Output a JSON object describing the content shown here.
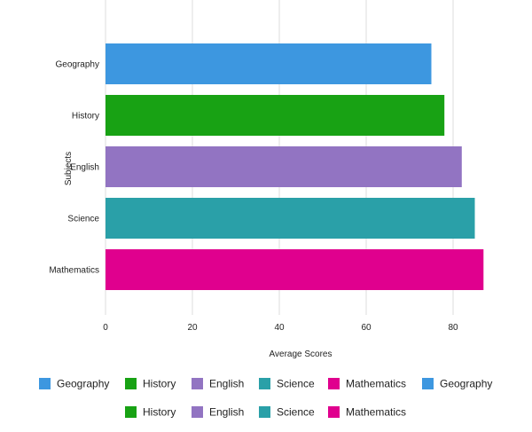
{
  "chart_data": {
    "type": "bar",
    "orientation": "horizontal",
    "categories": [
      "Geography",
      "History",
      "English",
      "Science",
      "Mathematics"
    ],
    "values": [
      75,
      78,
      82,
      85,
      87
    ],
    "colors": [
      "#3d97e0",
      "#18a214",
      "#9274c2",
      "#2aa0a8",
      "#e0008e"
    ],
    "xlabel": "Average Scores",
    "ylabel": "Subjects",
    "xlim": [
      0,
      90
    ],
    "xticks": [
      0,
      20,
      40,
      60,
      80
    ],
    "grid": true,
    "legend": {
      "position": "bottom",
      "entries": [
        "Geography",
        "History",
        "English",
        "Science",
        "Mathematics",
        "Geography",
        "History",
        "English",
        "Science",
        "Mathematics"
      ]
    }
  }
}
